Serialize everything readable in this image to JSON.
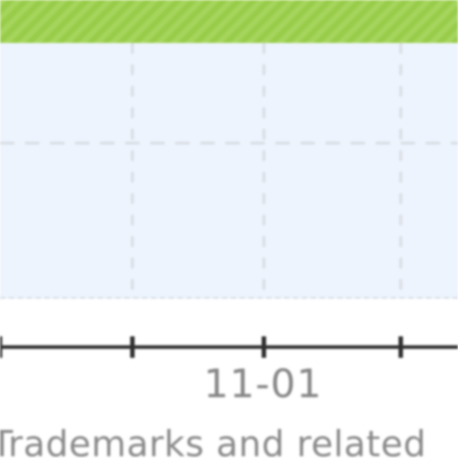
{
  "header_band": {
    "color": "#9bd04a"
  },
  "plot": {
    "background": "#edf4fd",
    "grid": true,
    "grid_color": "#d8dde3"
  },
  "x_axis": {
    "ticks": [
      "",
      "",
      "11-01",
      "",
      ""
    ],
    "visible_label": "11-01",
    "axis_color": "#2f2f2f"
  },
  "footer": {
    "text": "Trademarks and related"
  }
}
